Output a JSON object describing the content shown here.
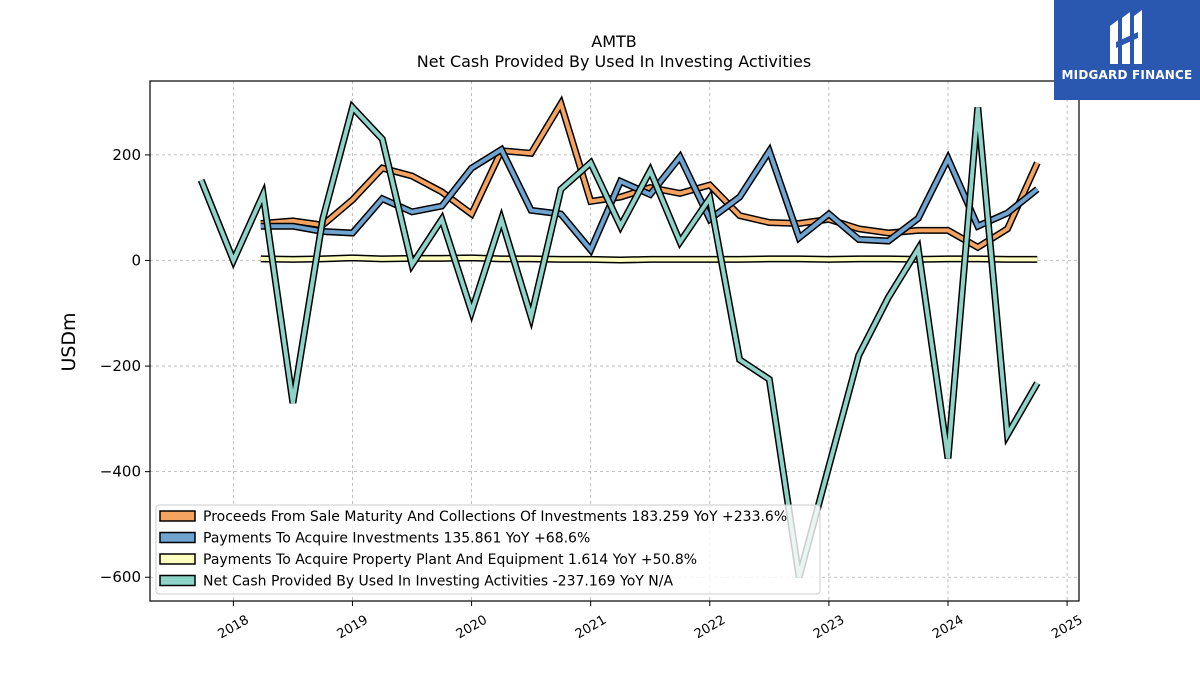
{
  "chart_data": {
    "type": "line",
    "title": "AMTB",
    "subtitle": "Net Cash Provided By Used In Investing Activities",
    "ylabel": "USDm",
    "xlabel": "",
    "xlim": [
      2017.3,
      2025.1
    ],
    "ylim": [
      -645,
      340
    ],
    "x_ticks": [
      2018,
      2019,
      2020,
      2021,
      2022,
      2023,
      2024,
      2025
    ],
    "y_ticks": [
      200,
      0,
      -200,
      -400,
      -600
    ],
    "y_tick_labels": [
      "200",
      "0",
      "−200",
      "−400",
      "−600"
    ],
    "grid": true,
    "legend_position": "bottom-left",
    "series": [
      {
        "name": "Proceeds From Sale Maturity And Collections Of Investments",
        "legend_label": "Proceeds From Sale Maturity And Collections Of Investments  183.259 YoY +233.6%",
        "color": "#f4a460",
        "x": [
          2018.23,
          2018.5,
          2018.75,
          2019.0,
          2019.25,
          2019.5,
          2019.75,
          2020.0,
          2020.25,
          2020.5,
          2020.75,
          2021.0,
          2021.25,
          2021.5,
          2021.75,
          2022.0,
          2022.25,
          2022.5,
          2022.75,
          2023.0,
          2023.25,
          2023.5,
          2023.75,
          2024.0,
          2024.25,
          2024.5,
          2024.75
        ],
        "y": [
          70,
          75,
          67,
          115,
          175,
          160,
          130,
          88,
          208,
          203,
          297,
          112,
          120,
          138,
          127,
          143,
          85,
          72,
          70,
          78,
          60,
          52,
          57,
          57,
          25,
          60,
          185
        ]
      },
      {
        "name": "Payments To Acquire Investments",
        "legend_label": "Payments To Acquire Investments  135.861 YoY +68.6%",
        "color": "#6fa3d0",
        "x": [
          2018.23,
          2018.5,
          2018.75,
          2019.0,
          2019.25,
          2019.5,
          2019.75,
          2020.0,
          2020.25,
          2020.5,
          2020.75,
          2021.0,
          2021.25,
          2021.5,
          2021.75,
          2022.0,
          2022.25,
          2022.5,
          2022.75,
          2023.0,
          2023.25,
          2023.5,
          2023.75,
          2024.0,
          2024.25,
          2024.5,
          2024.75
        ],
        "y": [
          65,
          65,
          55,
          52,
          117,
          92,
          103,
          175,
          210,
          95,
          88,
          20,
          150,
          125,
          196,
          78,
          120,
          207,
          43,
          88,
          40,
          37,
          80,
          193,
          65,
          90,
          135
        ]
      },
      {
        "name": "Payments To Acquire Property Plant And Equipment",
        "legend_label": "Payments To Acquire Property Plant And Equipment  1.614 YoY +50.8%",
        "color": "#ffffbf",
        "x": [
          2018.23,
          2018.5,
          2018.75,
          2019.0,
          2019.25,
          2019.5,
          2019.75,
          2020.0,
          2020.25,
          2020.5,
          2020.75,
          2021.0,
          2021.25,
          2021.5,
          2021.75,
          2022.0,
          2022.25,
          2022.5,
          2022.75,
          2023.0,
          2023.25,
          2023.5,
          2023.75,
          2024.0,
          2024.25,
          2024.5,
          2024.75
        ],
        "y": [
          3,
          2,
          3,
          5,
          3,
          4,
          4,
          5,
          3,
          3,
          2,
          2,
          1,
          2,
          2,
          2,
          2,
          3,
          3,
          2,
          3,
          3,
          2,
          3,
          3,
          2,
          2
        ]
      },
      {
        "name": "Net Cash Provided By Used In Investing Activities",
        "legend_label": "Net Cash Provided By Used In Investing Activities  -237.169 YoY N/A",
        "color": "#8dd3c7",
        "x": [
          2017.73,
          2018.0,
          2018.25,
          2018.5,
          2018.75,
          2019.0,
          2019.25,
          2019.5,
          2019.75,
          2020.0,
          2020.25,
          2020.5,
          2020.75,
          2021.0,
          2021.25,
          2021.5,
          2021.75,
          2022.0,
          2022.25,
          2022.5,
          2022.75,
          2023.0,
          2023.25,
          2023.5,
          2023.75,
          2024.0,
          2024.25,
          2024.5,
          2024.75
        ],
        "y": [
          152,
          0,
          125,
          -270,
          78,
          290,
          230,
          -8,
          78,
          -97,
          78,
          -107,
          135,
          185,
          65,
          170,
          35,
          118,
          -188,
          -225,
          -600,
          -390,
          -180,
          -70,
          22,
          -375,
          290,
          -330,
          -232
        ]
      }
    ]
  },
  "logo": {
    "brand_name": "MIDGARD FINANCE",
    "background_color": "#2a57b0"
  }
}
